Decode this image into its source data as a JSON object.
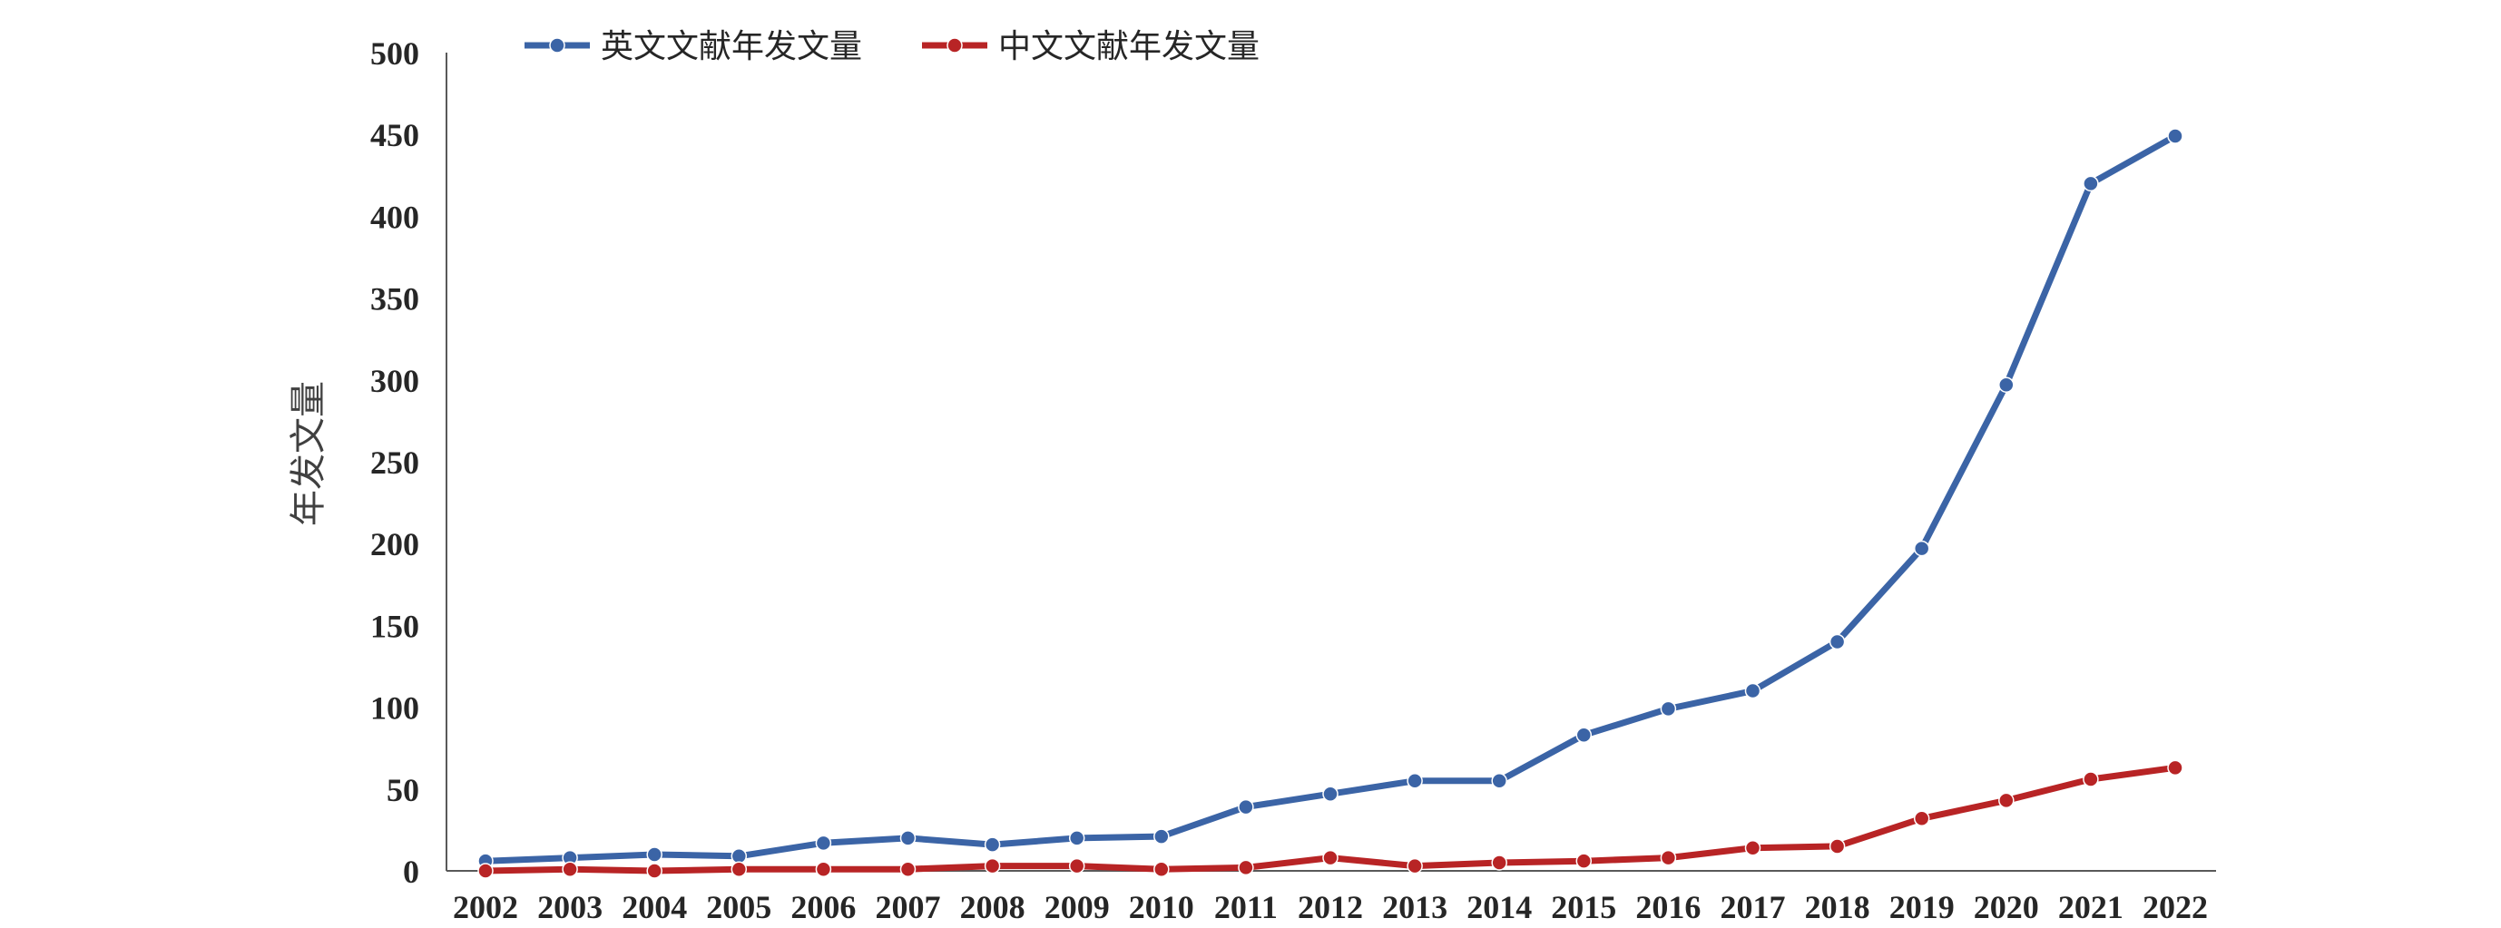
{
  "chart_data": {
    "type": "line",
    "title": "",
    "xlabel": "",
    "ylabel": "年发文量",
    "x": [
      "2002",
      "2003",
      "2004",
      "2005",
      "2006",
      "2007",
      "2008",
      "2009",
      "2010",
      "2011",
      "2012",
      "2013",
      "2014",
      "2015",
      "2016",
      "2017",
      "2018",
      "2019",
      "2020",
      "2021",
      "2022"
    ],
    "yticks": [
      "0",
      "50",
      "100",
      "150",
      "200",
      "250",
      "300",
      "350",
      "400",
      "450",
      "500"
    ],
    "ylim": [
      0,
      500
    ],
    "grid": false,
    "legend_position": "top",
    "series": [
      {
        "name": "英文文献年发文量",
        "color": "#3b64a6",
        "values": [
          6,
          8,
          10,
          9,
          17,
          20,
          16,
          20,
          21,
          39,
          47,
          55,
          55,
          83,
          99,
          110,
          140,
          197,
          297,
          420,
          449
        ]
      },
      {
        "name": "中文文献年发文量",
        "color": "#b82425",
        "values": [
          0,
          1,
          0,
          1,
          1,
          1,
          3,
          3,
          1,
          2,
          8,
          3,
          5,
          6,
          8,
          14,
          15,
          32,
          43,
          56,
          63
        ]
      }
    ]
  }
}
